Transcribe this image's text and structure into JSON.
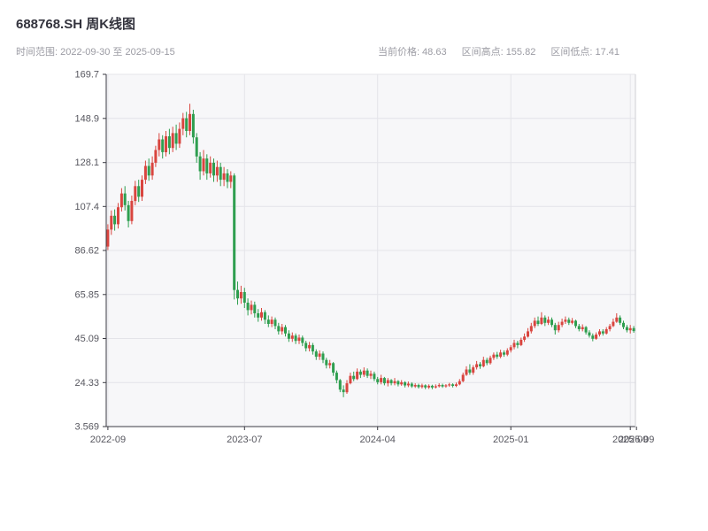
{
  "header": {
    "title": "688768.SH 周K线图",
    "subtitle": "时间范围: 2022-09-30 至 2025-09-15",
    "stats": [
      {
        "label": "当前价格:",
        "value": "48.63"
      },
      {
        "label": "区间高点:",
        "value": "155.82"
      },
      {
        "label": "区间低点:",
        "value": "17.41"
      }
    ]
  },
  "chart_data": {
    "type": "candlestick",
    "title": "688768.SH 周K线图",
    "symbol": "688768.SH",
    "interval": "weekly",
    "date_range": [
      "2022-09-30",
      "2025-09-15"
    ],
    "current_price": 48.63,
    "range_high": 155.82,
    "range_low": 17.41,
    "xlabel": "",
    "ylabel": "",
    "ylim": [
      3.569,
      169.7
    ],
    "y_ticks": [
      3.569,
      24.33,
      45.09,
      65.85,
      86.62,
      107.4,
      128.1,
      148.9,
      169.7
    ],
    "y_tick_labels": [
      "3.569",
      "24.33",
      "45.09",
      "65.85",
      "86.62",
      "107.4",
      "128.1",
      "148.9",
      "169.7"
    ],
    "x_tick_labels": [
      "2022-09",
      "2023-07",
      "2024-04",
      "2025-01",
      "2025-09"
    ],
    "x_tick_indices": [
      0,
      40,
      79,
      118,
      153
    ],
    "extra_x_label": {
      "index": 154.8,
      "label": "2025-09"
    },
    "grid": true,
    "legend": "none",
    "colors": {
      "up": "#d9453f",
      "down": "#2e9e4f",
      "grid": "#e4e4e9",
      "plot_bg": "#f7f7f9",
      "spine": "#3a3a42",
      "right_spine": "#cfcfd4"
    },
    "candles": [
      [
        "2022-09-30",
        88.5,
        99.0,
        86.8,
        96.5
      ],
      [
        "2022-10-07",
        96.5,
        105.5,
        94.0,
        103.0
      ],
      [
        "2022-10-14",
        103.0,
        106.0,
        96.0,
        99.0
      ],
      [
        "2022-10-21",
        99.0,
        109.0,
        97.0,
        107.0
      ],
      [
        "2022-10-28",
        107.0,
        116.0,
        105.0,
        113.5
      ],
      [
        "2022-11-04",
        113.5,
        117.0,
        105.5,
        108.0
      ],
      [
        "2022-11-11",
        108.0,
        110.0,
        97.5,
        100.5
      ],
      [
        "2022-11-18",
        100.5,
        112.5,
        99.0,
        110.0
      ],
      [
        "2022-11-25",
        110.0,
        119.5,
        108.0,
        117.0
      ],
      [
        "2022-12-02",
        117.0,
        120.0,
        109.5,
        112.0
      ],
      [
        "2022-12-09",
        112.0,
        122.0,
        110.0,
        120.0
      ],
      [
        "2022-12-16",
        120.0,
        129.0,
        118.0,
        126.5
      ],
      [
        "2022-12-23",
        126.5,
        130.0,
        119.5,
        122.0
      ],
      [
        "2022-12-30",
        122.0,
        131.0,
        120.0,
        128.0
      ],
      [
        "2023-01-06",
        128.0,
        136.0,
        126.0,
        134.0
      ],
      [
        "2023-01-13",
        134.0,
        142.0,
        131.0,
        139.0
      ],
      [
        "2023-01-20",
        139.0,
        141.0,
        130.0,
        133.0
      ],
      [
        "2023-01-27",
        133.0,
        143.0,
        131.0,
        140.5
      ],
      [
        "2023-02-03",
        140.5,
        144.0,
        132.0,
        135.0
      ],
      [
        "2023-02-10",
        135.0,
        145.0,
        133.0,
        142.0
      ],
      [
        "2023-02-17",
        142.0,
        146.0,
        134.0,
        137.0
      ],
      [
        "2023-02-24",
        137.0,
        147.0,
        135.0,
        144.0
      ],
      [
        "2023-03-03",
        144.0,
        151.5,
        141.0,
        149.0
      ],
      [
        "2023-03-10",
        149.0,
        152.0,
        140.0,
        143.0
      ],
      [
        "2023-03-17",
        143.0,
        155.82,
        141.0,
        151.0
      ],
      [
        "2023-03-24",
        151.0,
        153.0,
        137.0,
        140.0
      ],
      [
        "2023-03-31",
        140.0,
        142.0,
        128.0,
        131.0
      ],
      [
        "2023-04-07",
        131.0,
        133.0,
        120.0,
        124.0
      ],
      [
        "2023-04-14",
        124.0,
        134.0,
        122.0,
        130.0
      ],
      [
        "2023-04-21",
        130.0,
        132.0,
        120.0,
        123.0
      ],
      [
        "2023-04-28",
        123.0,
        131.0,
        121.0,
        128.0
      ],
      [
        "2023-05-05",
        128.0,
        130.0,
        119.0,
        122.0
      ],
      [
        "2023-05-12",
        122.0,
        129.0,
        119.0,
        126.0
      ],
      [
        "2023-05-19",
        126.0,
        128.0,
        117.0,
        120.0
      ],
      [
        "2023-05-26",
        120.0,
        126.0,
        117.0,
        123.0
      ],
      [
        "2023-06-02",
        123.0,
        125.0,
        116.0,
        119.0
      ],
      [
        "2023-06-09",
        119.0,
        124.0,
        116.0,
        122.0
      ],
      [
        "2023-06-16",
        122.0,
        123.0,
        63.5,
        68.0
      ],
      [
        "2023-06-23",
        68.0,
        72.0,
        61.0,
        64.0
      ],
      [
        "2023-06-30",
        64.0,
        70.0,
        61.5,
        67.0
      ],
      [
        "2023-07-07",
        67.0,
        69.0,
        59.5,
        62.0
      ],
      [
        "2023-07-14",
        62.0,
        64.0,
        56.0,
        58.5
      ],
      [
        "2023-07-21",
        58.5,
        63.0,
        56.5,
        61.0
      ],
      [
        "2023-07-28",
        61.0,
        62.5,
        55.0,
        57.0
      ],
      [
        "2023-08-04",
        57.0,
        59.0,
        53.0,
        55.0
      ],
      [
        "2023-08-11",
        55.0,
        59.5,
        53.5,
        57.5
      ],
      [
        "2023-08-18",
        57.5,
        58.5,
        52.0,
        54.0
      ],
      [
        "2023-08-25",
        54.0,
        56.0,
        50.5,
        52.0
      ],
      [
        "2023-09-01",
        52.0,
        55.5,
        50.5,
        54.0
      ],
      [
        "2023-09-08",
        54.0,
        55.0,
        49.5,
        51.0
      ],
      [
        "2023-09-15",
        51.0,
        52.5,
        47.0,
        48.5
      ],
      [
        "2023-09-22",
        48.5,
        52.0,
        47.0,
        50.5
      ],
      [
        "2023-09-29",
        50.5,
        51.5,
        46.0,
        47.5
      ],
      [
        "2023-10-06",
        47.5,
        49.0,
        43.5,
        45.0
      ],
      [
        "2023-10-13",
        45.0,
        48.0,
        43.5,
        46.5
      ],
      [
        "2023-10-20",
        46.5,
        47.5,
        42.5,
        44.0
      ],
      [
        "2023-10-27",
        44.0,
        47.0,
        42.5,
        45.5
      ],
      [
        "2023-11-03",
        45.5,
        46.5,
        41.5,
        43.0
      ],
      [
        "2023-11-10",
        43.0,
        44.0,
        39.0,
        40.5
      ],
      [
        "2023-11-17",
        40.5,
        43.5,
        39.0,
        42.0
      ],
      [
        "2023-11-24",
        42.0,
        43.0,
        37.5,
        39.0
      ],
      [
        "2023-12-01",
        39.0,
        40.0,
        35.0,
        36.5
      ],
      [
        "2023-12-08",
        36.5,
        39.5,
        35.0,
        38.0
      ],
      [
        "2023-12-15",
        38.0,
        39.0,
        33.5,
        35.0
      ],
      [
        "2023-12-22",
        35.0,
        36.0,
        31.0,
        32.5
      ],
      [
        "2023-12-29",
        32.5,
        35.0,
        31.0,
        33.5
      ],
      [
        "2024-01-05",
        33.5,
        34.0,
        27.5,
        29.0
      ],
      [
        "2024-01-12",
        29.0,
        30.0,
        24.0,
        25.5
      ],
      [
        "2024-01-19",
        25.5,
        26.0,
        19.8,
        21.0
      ],
      [
        "2024-01-26",
        21.0,
        23.0,
        17.41,
        19.8
      ],
      [
        "2024-02-02",
        19.8,
        25.5,
        19.0,
        24.0
      ],
      [
        "2024-02-09",
        24.0,
        29.0,
        23.5,
        27.5
      ],
      [
        "2024-02-16",
        27.5,
        29.5,
        25.0,
        26.0
      ],
      [
        "2024-02-23",
        26.0,
        31.0,
        25.5,
        29.5
      ],
      [
        "2024-03-01",
        29.5,
        30.5,
        26.5,
        28.0
      ],
      [
        "2024-03-08",
        28.0,
        31.5,
        27.0,
        30.0
      ],
      [
        "2024-03-15",
        30.0,
        31.0,
        26.5,
        27.5
      ],
      [
        "2024-03-22",
        27.5,
        30.0,
        26.0,
        28.5
      ],
      [
        "2024-03-29",
        28.5,
        29.5,
        25.0,
        26.0
      ],
      [
        "2024-04-05",
        26.0,
        27.0,
        23.5,
        24.5
      ],
      [
        "2024-04-12",
        24.5,
        28.0,
        23.5,
        26.5
      ],
      [
        "2024-04-19",
        26.5,
        27.0,
        23.0,
        24.0
      ],
      [
        "2024-04-26",
        24.0,
        26.5,
        22.5,
        25.5
      ],
      [
        "2024-05-03",
        25.5,
        26.0,
        23.0,
        24.0
      ],
      [
        "2024-05-10",
        24.0,
        26.5,
        23.0,
        25.0
      ],
      [
        "2024-05-17",
        25.0,
        25.5,
        22.5,
        23.5
      ],
      [
        "2024-05-24",
        23.5,
        25.5,
        22.8,
        24.5
      ],
      [
        "2024-05-31",
        24.5,
        25.0,
        22.0,
        23.0
      ],
      [
        "2024-06-07",
        23.0,
        24.8,
        22.2,
        23.8
      ],
      [
        "2024-06-14",
        23.8,
        24.5,
        21.8,
        22.5
      ],
      [
        "2024-06-21",
        22.5,
        24.0,
        21.8,
        23.2
      ],
      [
        "2024-06-28",
        23.2,
        23.8,
        21.5,
        22.2
      ],
      [
        "2024-07-05",
        22.2,
        23.8,
        21.5,
        23.0
      ],
      [
        "2024-07-12",
        23.0,
        23.5,
        21.2,
        22.0
      ],
      [
        "2024-07-19",
        22.0,
        23.5,
        21.3,
        22.8
      ],
      [
        "2024-07-26",
        22.8,
        23.3,
        21.2,
        22.0
      ],
      [
        "2024-08-02",
        22.0,
        23.5,
        21.5,
        22.6
      ],
      [
        "2024-08-09",
        22.6,
        24.0,
        22.0,
        23.2
      ],
      [
        "2024-08-16",
        23.2,
        23.8,
        21.8,
        22.5
      ],
      [
        "2024-08-23",
        22.5,
        23.6,
        21.9,
        23.0
      ],
      [
        "2024-08-30",
        23.0,
        24.2,
        22.3,
        23.5
      ],
      [
        "2024-09-06",
        23.5,
        24.0,
        22.0,
        22.8
      ],
      [
        "2024-09-13",
        22.8,
        24.3,
        22.2,
        23.5
      ],
      [
        "2024-09-20",
        23.5,
        26.0,
        23.0,
        25.0
      ],
      [
        "2024-09-27",
        25.0,
        29.0,
        24.5,
        28.0
      ],
      [
        "2024-10-04",
        28.0,
        32.0,
        27.5,
        30.5
      ],
      [
        "2024-10-11",
        30.5,
        33.0,
        28.0,
        29.0
      ],
      [
        "2024-10-18",
        29.0,
        32.5,
        28.0,
        31.5
      ],
      [
        "2024-10-25",
        31.5,
        34.5,
        30.5,
        33.0
      ],
      [
        "2024-11-01",
        33.0,
        34.0,
        30.8,
        32.0
      ],
      [
        "2024-11-08",
        32.0,
        36.5,
        31.5,
        35.0
      ],
      [
        "2024-11-15",
        35.0,
        36.0,
        32.5,
        33.5
      ],
      [
        "2024-11-22",
        33.5,
        37.0,
        32.8,
        36.0
      ],
      [
        "2024-11-29",
        36.0,
        38.5,
        35.0,
        37.5
      ],
      [
        "2024-12-06",
        37.5,
        38.8,
        35.5,
        36.5
      ],
      [
        "2024-12-13",
        36.5,
        39.8,
        35.8,
        38.5
      ],
      [
        "2024-12-20",
        38.5,
        39.5,
        36.5,
        37.5
      ],
      [
        "2024-12-27",
        37.5,
        40.5,
        36.8,
        39.5
      ],
      [
        "2025-01-03",
        39.5,
        42.0,
        38.5,
        41.0
      ],
      [
        "2025-01-10",
        41.0,
        44.5,
        40.0,
        43.0
      ],
      [
        "2025-01-17",
        43.0,
        44.0,
        40.5,
        42.0
      ],
      [
        "2025-01-24",
        42.0,
        45.5,
        41.5,
        44.5
      ],
      [
        "2025-01-31",
        44.5,
        47.5,
        43.5,
        46.0
      ],
      [
        "2025-02-07",
        46.0,
        50.0,
        45.5,
        48.5
      ],
      [
        "2025-02-14",
        48.5,
        52.5,
        47.5,
        51.0
      ],
      [
        "2025-02-21",
        51.0,
        55.0,
        50.0,
        53.5
      ],
      [
        "2025-02-28",
        53.5,
        55.5,
        51.0,
        52.0
      ],
      [
        "2025-03-07",
        52.0,
        57.5,
        51.5,
        55.0
      ],
      [
        "2025-03-14",
        55.0,
        56.0,
        51.0,
        52.5
      ],
      [
        "2025-03-21",
        52.5,
        55.5,
        51.5,
        54.0
      ],
      [
        "2025-03-28",
        54.0,
        55.0,
        50.5,
        51.5
      ],
      [
        "2025-04-04",
        51.5,
        52.5,
        47.0,
        49.0
      ],
      [
        "2025-04-11",
        49.0,
        53.0,
        48.0,
        51.5
      ],
      [
        "2025-04-18",
        51.5,
        54.5,
        50.5,
        53.0
      ],
      [
        "2025-04-25",
        53.0,
        55.5,
        52.0,
        54.0
      ],
      [
        "2025-05-02",
        54.0,
        55.0,
        51.5,
        52.5
      ],
      [
        "2025-05-09",
        52.5,
        54.8,
        51.8,
        53.5
      ],
      [
        "2025-05-16",
        53.5,
        54.0,
        50.0,
        51.0
      ],
      [
        "2025-05-23",
        51.0,
        52.0,
        48.5,
        49.5
      ],
      [
        "2025-05-30",
        49.5,
        51.8,
        48.5,
        50.5
      ],
      [
        "2025-06-06",
        50.5,
        51.0,
        47.0,
        48.0
      ],
      [
        "2025-06-13",
        48.0,
        49.0,
        45.5,
        46.5
      ],
      [
        "2025-06-20",
        46.5,
        47.5,
        43.8,
        45.0
      ],
      [
        "2025-06-27",
        45.0,
        48.0,
        44.5,
        47.0
      ],
      [
        "2025-07-04",
        47.0,
        49.5,
        46.0,
        48.5
      ],
      [
        "2025-07-11",
        48.5,
        49.5,
        46.5,
        47.5
      ],
      [
        "2025-07-18",
        47.5,
        50.5,
        47.0,
        49.5
      ],
      [
        "2025-07-25",
        49.5,
        52.0,
        48.5,
        51.0
      ],
      [
        "2025-08-01",
        51.0,
        54.5,
        50.5,
        53.0
      ],
      [
        "2025-08-08",
        53.0,
        57.0,
        52.5,
        55.0
      ],
      [
        "2025-08-15",
        55.0,
        56.0,
        51.5,
        52.5
      ],
      [
        "2025-08-22",
        52.5,
        53.5,
        49.5,
        50.5
      ],
      [
        "2025-08-29",
        50.5,
        51.5,
        48.0,
        49.0
      ],
      [
        "2025-09-05",
        49.0,
        51.5,
        47.5,
        50.0
      ],
      [
        "2025-09-12",
        50.0,
        51.0,
        47.8,
        48.63
      ]
    ]
  }
}
